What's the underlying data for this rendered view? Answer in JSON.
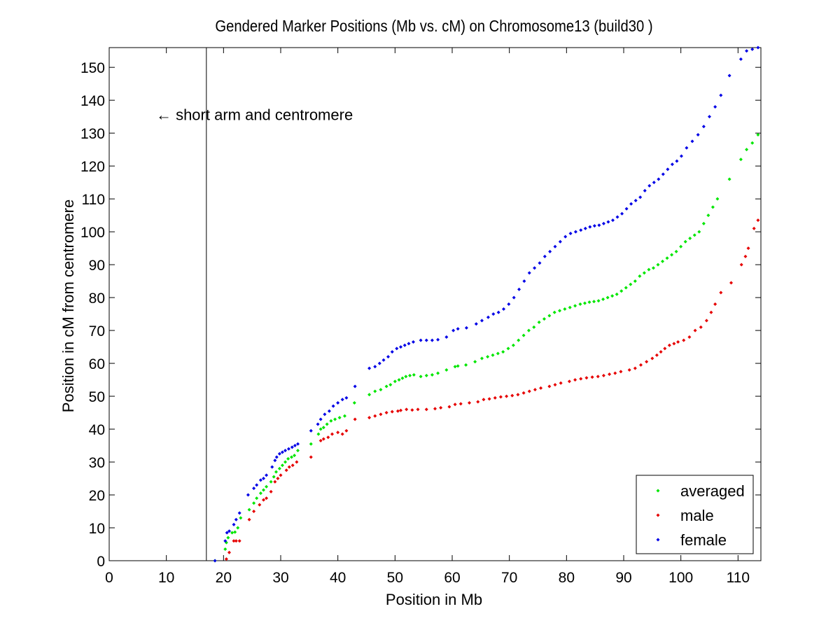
{
  "chart_data": {
    "type": "scatter",
    "title": "Gendered Marker Positions (Mb vs. cM) on Chromosome13 (build30 )",
    "xlabel": "Position in Mb",
    "ylabel": "Position in cM from centromere",
    "xlim": [
      0,
      114
    ],
    "ylim": [
      0,
      156
    ],
    "xticks": [
      0,
      10,
      20,
      30,
      40,
      50,
      60,
      70,
      80,
      90,
      100,
      110
    ],
    "yticks": [
      0,
      10,
      20,
      30,
      40,
      50,
      60,
      70,
      80,
      90,
      100,
      110,
      120,
      130,
      140,
      150
    ],
    "grid": false,
    "legend_position": "bottom-right",
    "annotation": {
      "text": "← short arm and centromere",
      "x": 8.2,
      "y": 134,
      "line_x": 17
    },
    "series": [
      {
        "name": "averaged",
        "color": "#00e600",
        "x": [
          18.5,
          20.3,
          20.5,
          20.8,
          21.5,
          22.0,
          22.5,
          23.0,
          24.5,
          25.3,
          25.8,
          26.5,
          27.0,
          27.5,
          28.3,
          28.8,
          29.2,
          29.8,
          30.3,
          30.8,
          31.3,
          31.9,
          32.4,
          33.0,
          35.3,
          36.6,
          37.0,
          37.5,
          38.1,
          38.8,
          39.5,
          40.3,
          41.2,
          42.9,
          45.5,
          46.5,
          47.5,
          48.5,
          49.2,
          50.0,
          50.7,
          51.3,
          51.9,
          52.6,
          53.3,
          54.5,
          55.5,
          56.5,
          57.5,
          59.0,
          60.5,
          61.0,
          62.4,
          64.0,
          65.2,
          66.2,
          67.1,
          68.0,
          68.9,
          69.8,
          70.7,
          71.6,
          72.5,
          73.4,
          74.3,
          75.2,
          76.1,
          77.0,
          77.9,
          78.8,
          79.7,
          80.6,
          81.5,
          82.4,
          83.2,
          84.0,
          84.8,
          85.6,
          86.4,
          87.2,
          88.0,
          88.8,
          89.6,
          90.4,
          91.2,
          92.0,
          92.8,
          93.6,
          94.4,
          95.2,
          96.0,
          96.8,
          97.6,
          98.4,
          99.2,
          100.0,
          100.8,
          101.6,
          102.4,
          103.2,
          104.0,
          104.8,
          105.6,
          106.4,
          108.5,
          110.5,
          111.5,
          112.5,
          113.5
        ],
        "y": [
          0,
          3.5,
          5.5,
          7.0,
          8.5,
          8.7,
          10.0,
          13.0,
          15.5,
          17.5,
          19.0,
          20.5,
          21.5,
          22.5,
          24.0,
          25.5,
          27.0,
          28.0,
          29.0,
          30.0,
          31.0,
          31.5,
          32.0,
          33.5,
          35.5,
          38.5,
          40.0,
          40.5,
          41.5,
          42.5,
          43.0,
          43.5,
          44.0,
          48.0,
          50.5,
          51.5,
          52.0,
          53.0,
          53.5,
          54.5,
          55.0,
          55.5,
          56.0,
          56.3,
          56.5,
          56.0,
          56.3,
          56.5,
          57.0,
          58.0,
          59.0,
          59.2,
          59.5,
          60.5,
          61.5,
          62.0,
          62.5,
          63.0,
          63.5,
          64.5,
          65.5,
          67.0,
          68.5,
          70.0,
          71.0,
          72.5,
          73.5,
          74.5,
          75.5,
          76.0,
          76.5,
          77.0,
          77.5,
          78.0,
          78.3,
          78.6,
          78.8,
          79.0,
          79.5,
          80.0,
          80.5,
          81.0,
          82.0,
          83.0,
          84.0,
          85.0,
          86.5,
          87.5,
          88.5,
          89.0,
          90.0,
          91.0,
          92.0,
          93.0,
          94.0,
          95.5,
          97.0,
          98.0,
          99.0,
          100.0,
          102.5,
          105.0,
          107.5,
          110.0,
          116.0,
          122.0,
          125.0,
          127.0,
          129.5
        ]
      },
      {
        "name": "male",
        "color": "#e60000",
        "x": [
          20.5,
          21.0,
          21.8,
          22.2,
          22.8,
          24.5,
          25.3,
          26.3,
          27.0,
          27.5,
          28.3,
          29.0,
          29.5,
          30.0,
          31.0,
          31.5,
          32.1,
          32.8,
          35.3,
          37.0,
          37.5,
          38.3,
          39.0,
          40.0,
          40.8,
          41.5,
          43.0,
          45.5,
          46.5,
          47.5,
          48.5,
          49.5,
          50.5,
          51.0,
          52.0,
          53.0,
          54.0,
          55.5,
          57.0,
          58.0,
          59.5,
          60.5,
          61.5,
          63.0,
          64.5,
          65.5,
          66.5,
          67.5,
          68.5,
          69.5,
          70.5,
          71.5,
          72.5,
          73.5,
          74.5,
          75.5,
          77.0,
          78.0,
          79.0,
          80.5,
          81.5,
          82.5,
          83.5,
          84.5,
          85.5,
          86.5,
          87.5,
          88.5,
          89.5,
          91.0,
          92.0,
          93.0,
          94.0,
          95.0,
          95.8,
          96.5,
          97.2,
          98.0,
          98.8,
          99.5,
          100.5,
          101.5,
          102.5,
          103.5,
          104.5,
          105.3,
          106.0,
          107.0,
          108.8,
          110.6,
          111.3,
          111.8,
          112.8,
          113.5
        ],
        "y": [
          0.5,
          2.5,
          6.0,
          6.0,
          6.0,
          12.5,
          15.0,
          17.0,
          18.5,
          19.0,
          21.0,
          24.0,
          25.0,
          26.0,
          27.5,
          28.5,
          29.0,
          30.0,
          31.5,
          36.5,
          37.0,
          37.5,
          38.5,
          39.0,
          38.5,
          39.5,
          43.0,
          43.5,
          44.0,
          44.5,
          45.0,
          45.3,
          45.5,
          45.7,
          46.0,
          45.8,
          46.0,
          46.0,
          46.2,
          46.5,
          46.8,
          47.5,
          47.7,
          48.0,
          48.3,
          49.0,
          49.2,
          49.5,
          49.8,
          50.0,
          50.2,
          50.5,
          51.0,
          51.5,
          52.0,
          52.5,
          53.0,
          53.5,
          54.0,
          54.5,
          55.0,
          55.3,
          55.6,
          55.8,
          56.0,
          56.3,
          56.7,
          57.0,
          57.5,
          58.0,
          58.5,
          59.5,
          60.5,
          61.5,
          62.5,
          63.5,
          64.5,
          65.5,
          66.0,
          66.5,
          67.0,
          68.0,
          70.0,
          71.0,
          73.0,
          75.5,
          78.0,
          81.5,
          84.5,
          90.0,
          92.5,
          95.0,
          101.0,
          103.5
        ]
      },
      {
        "name": "female",
        "color": "#0000e6",
        "x": [
          18.5,
          20.3,
          20.6,
          21.0,
          21.8,
          22.2,
          22.8,
          24.3,
          25.3,
          25.8,
          26.5,
          27.0,
          27.5,
          28.5,
          29.0,
          29.3,
          29.8,
          30.3,
          30.8,
          31.4,
          32.0,
          32.5,
          33.0,
          35.3,
          36.5,
          37.0,
          37.7,
          38.5,
          39.2,
          40.0,
          40.8,
          41.5,
          43.0,
          45.5,
          46.5,
          47.3,
          48.0,
          48.8,
          49.5,
          50.3,
          51.0,
          51.7,
          52.4,
          53.2,
          54.5,
          55.5,
          56.5,
          57.5,
          59.0,
          60.2,
          61.0,
          62.5,
          64.2,
          65.2,
          66.3,
          67.2,
          68.1,
          69.0,
          69.9,
          70.8,
          71.7,
          72.6,
          73.5,
          74.4,
          75.3,
          76.2,
          77.1,
          78.0,
          78.9,
          79.8,
          80.7,
          81.6,
          82.5,
          83.3,
          84.1,
          84.9,
          85.7,
          86.5,
          87.3,
          88.1,
          88.9,
          89.7,
          90.5,
          91.3,
          92.1,
          92.9,
          93.7,
          94.5,
          95.3,
          96.1,
          96.9,
          97.7,
          98.5,
          99.3,
          100.1,
          101.0,
          102.0,
          103.0,
          104.0,
          105.0,
          106.0,
          107.0,
          108.5,
          110.5,
          111.5,
          112.5,
          113.5
        ],
        "y": [
          0,
          6.0,
          8.5,
          9.0,
          11.0,
          12.5,
          14.5,
          20.0,
          22.0,
          23.0,
          24.5,
          25.0,
          26.0,
          28.5,
          30.5,
          31.5,
          32.5,
          33.0,
          33.5,
          34.0,
          34.5,
          35.0,
          35.5,
          39.5,
          41.5,
          43.0,
          44.5,
          45.5,
          47.0,
          48.0,
          49.0,
          49.5,
          53.0,
          58.5,
          59.0,
          60.0,
          61.0,
          62.0,
          63.5,
          64.5,
          65.0,
          65.5,
          66.0,
          66.5,
          67.0,
          67.0,
          67.0,
          67.2,
          68.0,
          70.0,
          70.5,
          70.8,
          72.0,
          73.0,
          74.0,
          75.0,
          75.5,
          76.5,
          78.0,
          80.0,
          82.5,
          85.0,
          87.5,
          89.0,
          90.5,
          92.5,
          94.0,
          95.5,
          97.0,
          98.5,
          99.5,
          100.0,
          100.5,
          101.0,
          101.5,
          101.8,
          102.0,
          102.5,
          103.0,
          103.5,
          104.5,
          105.5,
          107.0,
          108.5,
          109.5,
          110.5,
          112.5,
          114.0,
          115.0,
          116.0,
          117.5,
          119.0,
          120.5,
          121.5,
          123.0,
          125.5,
          127.5,
          129.5,
          132.0,
          135.0,
          138.0,
          141.5,
          147.5,
          152.5,
          155.0,
          155.5,
          156.0
        ]
      }
    ]
  }
}
